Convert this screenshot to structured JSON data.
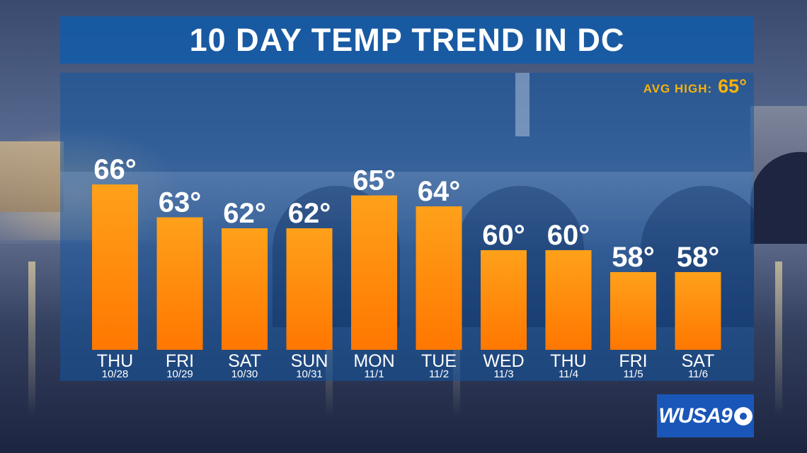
{
  "title": "10 DAY TEMP TREND IN DC",
  "avg_high": {
    "label": "AVG HIGH:",
    "value": "65°"
  },
  "logo": {
    "text": "WUSA9",
    "icon": "cbs-eye-icon"
  },
  "colors": {
    "bar_top": "#ffa11a",
    "bar_bottom": "#ff7700",
    "title_panel": "#125caa",
    "avg_text": "#f7b20c"
  },
  "chart_data": {
    "type": "bar",
    "title": "10 DAY TEMP TREND IN DC",
    "categories": [
      "THU",
      "FRI",
      "SAT",
      "SUN",
      "MON",
      "TUE",
      "WED",
      "THU",
      "FRI",
      "SAT"
    ],
    "dates": [
      "10/28",
      "10/29",
      "10/30",
      "10/31",
      "11/1",
      "11/2",
      "11/3",
      "11/4",
      "11/5",
      "11/6"
    ],
    "values": [
      66,
      63,
      62,
      62,
      65,
      64,
      60,
      60,
      58,
      58
    ],
    "value_labels": [
      "66°",
      "63°",
      "62°",
      "62°",
      "65°",
      "64°",
      "60°",
      "60°",
      "58°",
      "58°"
    ],
    "unit": "°F",
    "grid": false,
    "legend": "none"
  }
}
